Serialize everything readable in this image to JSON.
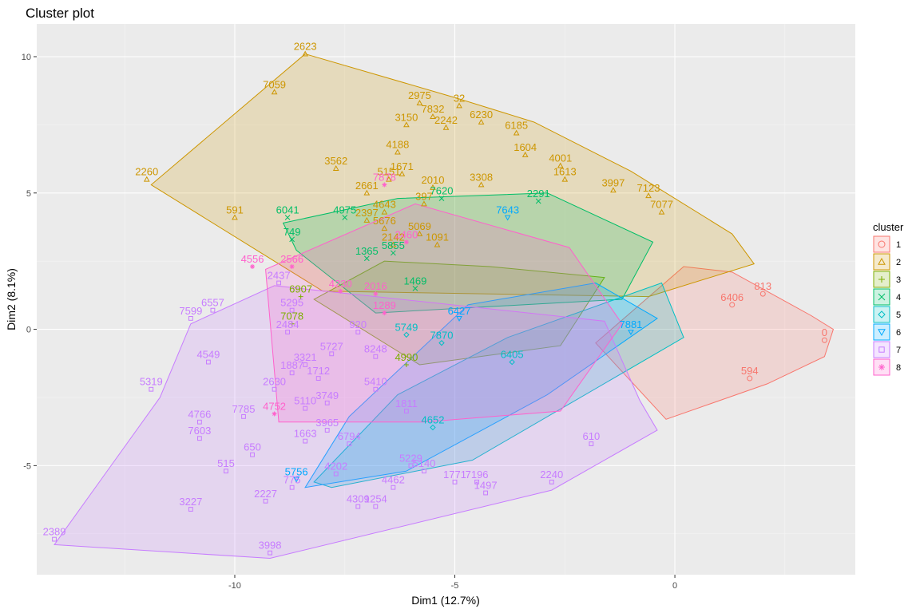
{
  "chart_data": {
    "type": "scatter",
    "title": "Cluster plot",
    "xlabel": "Dim1 (12.7%)",
    "ylabel": "Dim2 (8.1%)",
    "xlim": [
      -14.5,
      4.1
    ],
    "ylim": [
      -9.0,
      11.2
    ],
    "x_ticks": [
      -10,
      -5,
      0
    ],
    "x_tick_labels": [
      "-10",
      "-5",
      "0"
    ],
    "y_ticks": [
      -5,
      0,
      5,
      10
    ],
    "y_tick_labels": [
      "-5",
      "0",
      "5",
      "10"
    ],
    "grid": true,
    "legend": {
      "title": "cluster",
      "position": "right"
    },
    "clusters": [
      {
        "name": "1",
        "color": "#F8766D",
        "shape": "circle",
        "hull": [
          [
            -0.2,
            -3.3
          ],
          [
            2.1,
            -2.0
          ],
          [
            3.4,
            -1.0
          ],
          [
            3.6,
            0.0
          ],
          [
            3.1,
            0.5
          ],
          [
            1.3,
            2.1
          ],
          [
            0.2,
            2.3
          ],
          [
            -1.8,
            -0.5
          ]
        ],
        "labeled_points": [
          {
            "x": 3.4,
            "y": -0.4,
            "label": "0"
          },
          {
            "x": 1.7,
            "y": -1.8,
            "label": "594"
          },
          {
            "x": 2.0,
            "y": 1.3,
            "label": "813"
          },
          {
            "x": 1.3,
            "y": 0.9,
            "label": "6406"
          }
        ]
      },
      {
        "name": "2",
        "color": "#CD9600",
        "shape": "triangle",
        "hull": [
          [
            -8.4,
            10.1
          ],
          [
            -5.0,
            8.5
          ],
          [
            -3.2,
            7.6
          ],
          [
            -1.0,
            5.8
          ],
          [
            1.3,
            3.5
          ],
          [
            1.8,
            2.4
          ],
          [
            -0.6,
            1.2
          ],
          [
            -8.0,
            1.4
          ],
          [
            -11.9,
            5.3
          ]
        ],
        "labeled_points": [
          {
            "x": -8.4,
            "y": 10.1,
            "label": "2623"
          },
          {
            "x": -9.1,
            "y": 8.7,
            "label": "7059"
          },
          {
            "x": -5.8,
            "y": 8.3,
            "label": "2975"
          },
          {
            "x": -4.9,
            "y": 8.2,
            "label": "32"
          },
          {
            "x": -5.5,
            "y": 7.8,
            "label": "7832"
          },
          {
            "x": -6.1,
            "y": 7.5,
            "label": "3150"
          },
          {
            "x": -5.2,
            "y": 7.4,
            "label": "2242"
          },
          {
            "x": -4.4,
            "y": 7.6,
            "label": "6230"
          },
          {
            "x": -3.6,
            "y": 7.2,
            "label": "6185"
          },
          {
            "x": -6.3,
            "y": 6.5,
            "label": "4188"
          },
          {
            "x": -3.4,
            "y": 6.4,
            "label": "1604"
          },
          {
            "x": -2.6,
            "y": 6.0,
            "label": "4001"
          },
          {
            "x": -2.5,
            "y": 5.5,
            "label": "1613"
          },
          {
            "x": -7.7,
            "y": 5.9,
            "label": "3562"
          },
          {
            "x": -6.5,
            "y": 5.5,
            "label": "5151"
          },
          {
            "x": -6.2,
            "y": 5.7,
            "label": "1671"
          },
          {
            "x": -5.5,
            "y": 5.2,
            "label": "2010"
          },
          {
            "x": -7.0,
            "y": 5.0,
            "label": "2661"
          },
          {
            "x": -4.4,
            "y": 5.3,
            "label": "3308"
          },
          {
            "x": -5.7,
            "y": 4.6,
            "label": "397"
          },
          {
            "x": -6.6,
            "y": 4.3,
            "label": "4643"
          },
          {
            "x": -1.4,
            "y": 5.1,
            "label": "3997"
          },
          {
            "x": -0.6,
            "y": 4.9,
            "label": "7123"
          },
          {
            "x": -0.3,
            "y": 4.3,
            "label": "7077"
          },
          {
            "x": -12.0,
            "y": 5.5,
            "label": "2260"
          },
          {
            "x": -10.0,
            "y": 4.1,
            "label": "591"
          },
          {
            "x": -7.0,
            "y": 4.0,
            "label": "2397"
          },
          {
            "x": -6.6,
            "y": 3.7,
            "label": "5676"
          },
          {
            "x": -6.4,
            "y": 3.1,
            "label": "2142"
          },
          {
            "x": -5.4,
            "y": 3.1,
            "label": "1091"
          },
          {
            "x": -5.8,
            "y": 3.5,
            "label": "5069"
          }
        ]
      },
      {
        "name": "3",
        "color": "#7CAE00",
        "shape": "cross",
        "hull": [
          [
            -8.2,
            1.1
          ],
          [
            -5.8,
            -1.3
          ],
          [
            -2.6,
            -0.6
          ],
          [
            -1.6,
            1.9
          ],
          [
            -4.2,
            2.3
          ],
          [
            -6.6,
            2.5
          ]
        ],
        "labeled_points": [
          {
            "x": -8.7,
            "y": 0.2,
            "label": "7078"
          },
          {
            "x": -6.1,
            "y": -1.3,
            "label": "4990"
          },
          {
            "x": -8.5,
            "y": 1.2,
            "label": "6907"
          }
        ]
      },
      {
        "name": "4",
        "color": "#00BE67",
        "shape": "x",
        "hull": [
          [
            -8.9,
            3.9
          ],
          [
            -6.3,
            4.8
          ],
          [
            -2.9,
            5.0
          ],
          [
            -0.5,
            3.2
          ],
          [
            -1.2,
            1.1
          ],
          [
            -6.8,
            0.6
          ],
          [
            -8.6,
            2.9
          ]
        ],
        "labeled_points": [
          {
            "x": -8.8,
            "y": 4.1,
            "label": "6041"
          },
          {
            "x": -7.5,
            "y": 4.1,
            "label": "4975"
          },
          {
            "x": -8.7,
            "y": 3.3,
            "label": "749"
          },
          {
            "x": -7.0,
            "y": 2.6,
            "label": "1365"
          },
          {
            "x": -6.4,
            "y": 2.8,
            "label": "5855"
          },
          {
            "x": -5.9,
            "y": 1.5,
            "label": "1469"
          },
          {
            "x": -5.3,
            "y": 4.8,
            "label": "7620"
          },
          {
            "x": -3.1,
            "y": 4.7,
            "label": "2291"
          }
        ]
      },
      {
        "name": "5",
        "color": "#00BFC4",
        "shape": "diamond",
        "hull": [
          [
            -8.2,
            -5.6
          ],
          [
            -6.3,
            -2.4
          ],
          [
            -3.8,
            -0.3
          ],
          [
            -0.3,
            1.7
          ],
          [
            0.2,
            -0.3
          ],
          [
            -4.6,
            -4.8
          ],
          [
            -7.8,
            -5.8
          ]
        ],
        "labeled_points": [
          {
            "x": -6.1,
            "y": -0.2,
            "label": "5749"
          },
          {
            "x": -5.3,
            "y": -0.5,
            "label": "7870"
          },
          {
            "x": -5.5,
            "y": -3.6,
            "label": "4652"
          },
          {
            "x": -3.7,
            "y": -1.2,
            "label": "6405"
          }
        ]
      },
      {
        "name": "6",
        "color": "#00A9FF",
        "shape": "triangle-down",
        "hull": [
          [
            -8.4,
            -5.8
          ],
          [
            -7.4,
            -3.2
          ],
          [
            -4.7,
            0.9
          ],
          [
            -1.8,
            1.7
          ],
          [
            -0.4,
            0.4
          ],
          [
            -2.9,
            -2.4
          ],
          [
            -6.1,
            -5.2
          ]
        ],
        "labeled_points": [
          {
            "x": -8.6,
            "y": -5.5,
            "label": "5756"
          },
          {
            "x": -4.9,
            "y": 0.4,
            "label": "6427"
          },
          {
            "x": -1.0,
            "y": -0.1,
            "label": "7881"
          },
          {
            "x": -3.8,
            "y": 4.1,
            "label": "7643"
          }
        ]
      },
      {
        "name": "7",
        "color": "#C77CFF",
        "shape": "square",
        "hull": [
          [
            -14.1,
            -7.9
          ],
          [
            -9.2,
            -8.4
          ],
          [
            -2.8,
            -5.9
          ],
          [
            -0.4,
            -3.7
          ],
          [
            -0.8,
            -2.6
          ],
          [
            -1.6,
            0.3
          ],
          [
            -9.1,
            1.6
          ],
          [
            -11.0,
            0.2
          ],
          [
            -11.7,
            -2.5
          ]
        ],
        "labeled_points": [
          {
            "x": -14.1,
            "y": -7.7,
            "label": "2389"
          },
          {
            "x": -9.2,
            "y": -8.2,
            "label": "3998"
          },
          {
            "x": -11.0,
            "y": -6.6,
            "label": "3227"
          },
          {
            "x": -11.9,
            "y": -2.2,
            "label": "5319"
          },
          {
            "x": -10.8,
            "y": -3.4,
            "label": "4766"
          },
          {
            "x": -10.8,
            "y": -4.0,
            "label": "7603"
          },
          {
            "x": -10.6,
            "y": -1.2,
            "label": "4549"
          },
          {
            "x": -10.5,
            "y": 0.7,
            "label": "6557"
          },
          {
            "x": -11.0,
            "y": 0.4,
            "label": "7599"
          },
          {
            "x": -9.0,
            "y": 1.7,
            "label": "2437"
          },
          {
            "x": -9.8,
            "y": -3.2,
            "label": "7785"
          },
          {
            "x": -8.7,
            "y": -1.6,
            "label": "1887"
          },
          {
            "x": -8.1,
            "y": -1.8,
            "label": "1712"
          },
          {
            "x": -9.1,
            "y": -2.2,
            "label": "2630"
          },
          {
            "x": -7.9,
            "y": -2.7,
            "label": "3749"
          },
          {
            "x": -7.9,
            "y": -3.7,
            "label": "3965"
          },
          {
            "x": -8.4,
            "y": -4.1,
            "label": "1663"
          },
          {
            "x": -9.6,
            "y": -4.6,
            "label": "650"
          },
          {
            "x": -10.2,
            "y": -5.2,
            "label": "515"
          },
          {
            "x": -9.3,
            "y": -6.3,
            "label": "2227"
          },
          {
            "x": -8.7,
            "y": -5.8,
            "label": "775"
          },
          {
            "x": -7.2,
            "y": -6.5,
            "label": "4309"
          },
          {
            "x": -6.4,
            "y": -5.8,
            "label": "4462"
          },
          {
            "x": -5.7,
            "y": -5.2,
            "label": "5140"
          },
          {
            "x": -4.3,
            "y": -6.0,
            "label": "1497"
          },
          {
            "x": -2.8,
            "y": -5.6,
            "label": "2240"
          },
          {
            "x": -4.5,
            "y": -5.6,
            "label": "7196"
          },
          {
            "x": -5.0,
            "y": -5.6,
            "label": "1771"
          },
          {
            "x": -1.9,
            "y": -4.2,
            "label": "610"
          },
          {
            "x": -7.8,
            "y": -0.9,
            "label": "5727"
          },
          {
            "x": -8.4,
            "y": -1.3,
            "label": "3321"
          },
          {
            "x": -8.7,
            "y": 0.7,
            "label": "5295"
          },
          {
            "x": -8.8,
            "y": -0.1,
            "label": "2484"
          },
          {
            "x": -7.2,
            "y": -0.1,
            "label": "920"
          },
          {
            "x": -6.8,
            "y": -1.0,
            "label": "8248"
          },
          {
            "x": -6.0,
            "y": -5.0,
            "label": "5229"
          },
          {
            "x": -6.8,
            "y": -2.2,
            "label": "5410"
          },
          {
            "x": -6.1,
            "y": -3.0,
            "label": "1811"
          },
          {
            "x": -7.4,
            "y": -4.2,
            "label": "6794"
          },
          {
            "x": -8.4,
            "y": -2.9,
            "label": "5110"
          },
          {
            "x": -7.7,
            "y": -5.3,
            "label": "4202"
          },
          {
            "x": -6.8,
            "y": -6.5,
            "label": "1254"
          }
        ]
      },
      {
        "name": "8",
        "color": "#FF61CC",
        "shape": "star",
        "hull": [
          [
            -9.3,
            2.2
          ],
          [
            -5.9,
            4.6
          ],
          [
            -2.4,
            3.0
          ],
          [
            -1.2,
            0.2
          ],
          [
            -2.6,
            -3.0
          ],
          [
            -5.7,
            -3.4
          ],
          [
            -9.0,
            -3.4
          ]
        ],
        "labeled_points": [
          {
            "x": -9.6,
            "y": 2.3,
            "label": "4556"
          },
          {
            "x": -8.7,
            "y": 2.3,
            "label": "2566"
          },
          {
            "x": -6.6,
            "y": 5.3,
            "label": "7878"
          },
          {
            "x": -6.1,
            "y": 3.2,
            "label": "2460"
          },
          {
            "x": -9.1,
            "y": -3.1,
            "label": "4752"
          },
          {
            "x": -7.6,
            "y": 1.4,
            "label": "4230"
          },
          {
            "x": -6.6,
            "y": 0.6,
            "label": "1289"
          },
          {
            "x": -6.8,
            "y": 1.3,
            "label": "2016"
          }
        ]
      }
    ]
  }
}
